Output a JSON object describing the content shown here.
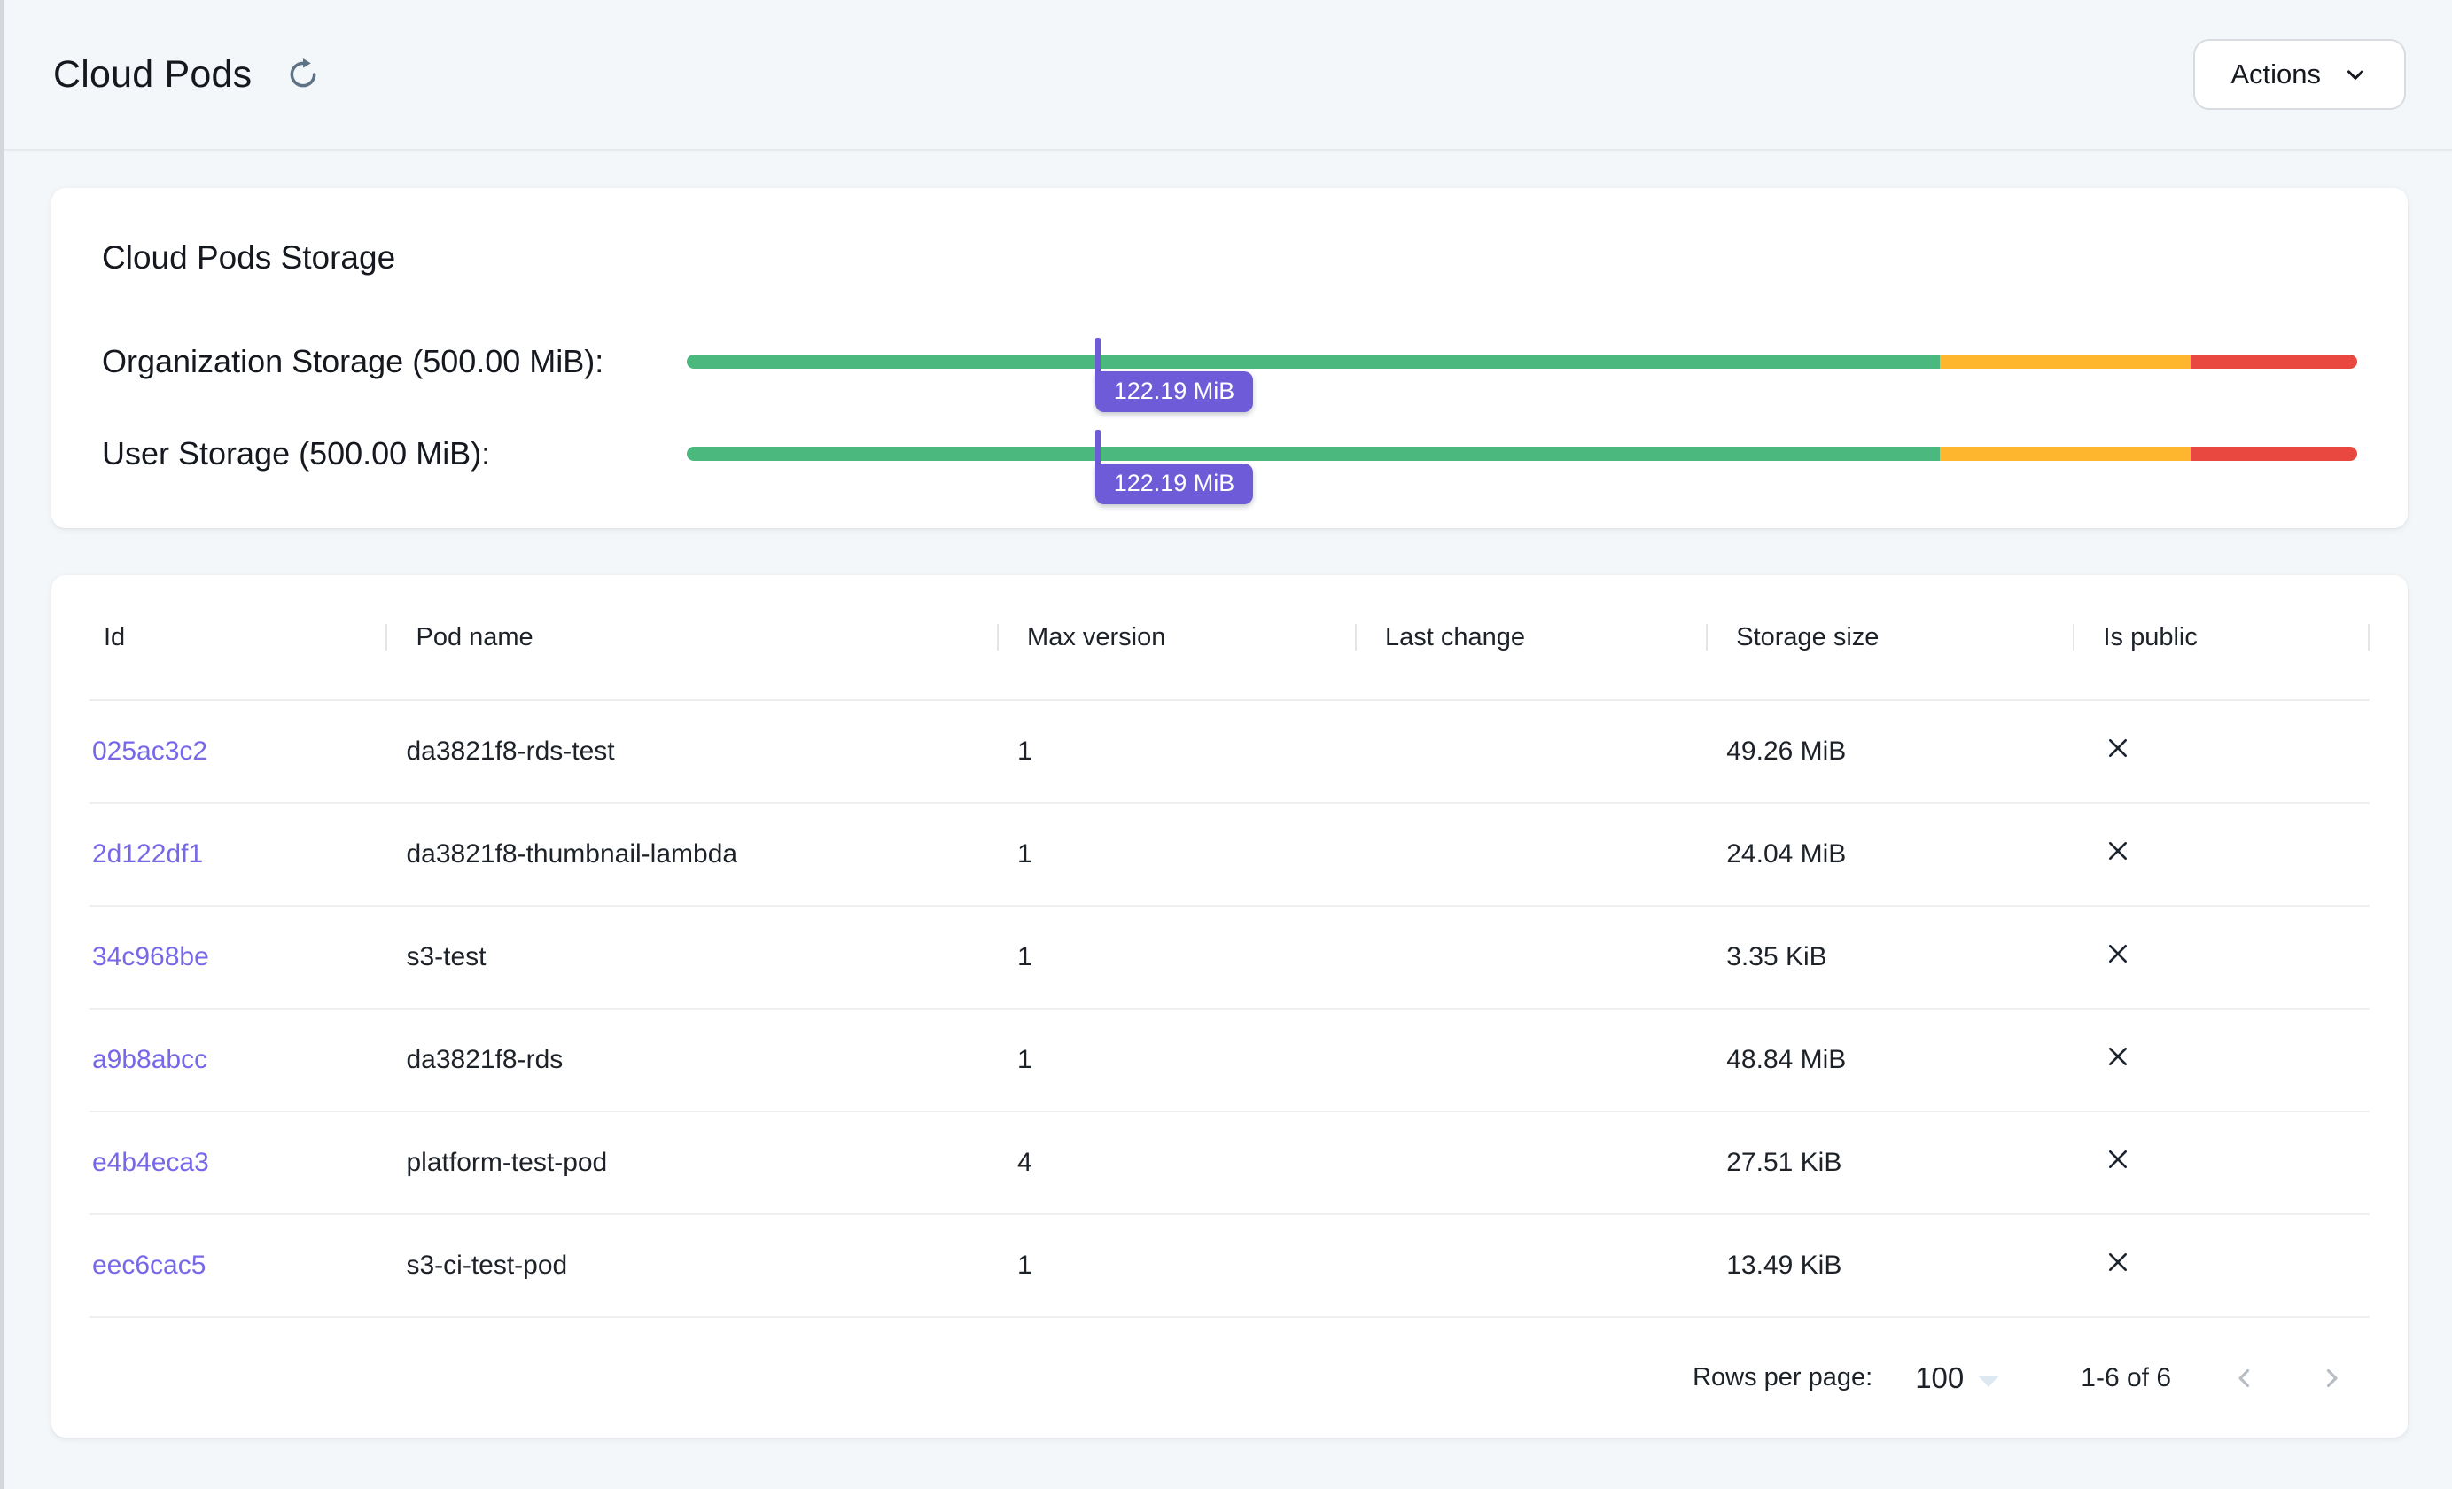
{
  "page": {
    "title": "Cloud Pods"
  },
  "topbar": {
    "actions_label": "Actions",
    "refresh_icon_color": "#5f7184"
  },
  "storage_card": {
    "title": "Cloud Pods Storage",
    "bars": [
      {
        "label": "Organization Storage (500.00 MiB):",
        "value_label": "122.19 MiB",
        "used_mib": 122.19,
        "capacity_mib": 500.0,
        "percent_used": 24.44
      },
      {
        "label": "User Storage (500.00 MiB):",
        "value_label": "122.19 MiB",
        "used_mib": 122.19,
        "capacity_mib": 500.0,
        "percent_used": 24.44
      }
    ],
    "segments": [
      {
        "name": "ok",
        "percent": 75,
        "color": "#4bb87e"
      },
      {
        "name": "warning",
        "percent": 15,
        "color": "#fdb62e"
      },
      {
        "name": "critical",
        "percent": 10,
        "color": "#e8483f"
      }
    ],
    "marker_color": "#6e5bd8",
    "tooltip_color": "#6e5bd8"
  },
  "table": {
    "columns": [
      "Id",
      "Pod name",
      "Max version",
      "Last change",
      "Storage size",
      "Is public"
    ],
    "rows": [
      {
        "id": "025ac3c2",
        "pod_name": "da3821f8-rds-test",
        "max_version": "1",
        "last_change": "",
        "storage_size": "49.26 MiB",
        "is_public": false
      },
      {
        "id": "2d122df1",
        "pod_name": "da3821f8-thumbnail-lambda",
        "max_version": "1",
        "last_change": "",
        "storage_size": "24.04 MiB",
        "is_public": false
      },
      {
        "id": "34c968be",
        "pod_name": "s3-test",
        "max_version": "1",
        "last_change": "",
        "storage_size": "3.35 KiB",
        "is_public": false
      },
      {
        "id": "a9b8abcc",
        "pod_name": "da3821f8-rds",
        "max_version": "1",
        "last_change": "",
        "storage_size": "48.84 MiB",
        "is_public": false
      },
      {
        "id": "e4b4eca3",
        "pod_name": "platform-test-pod",
        "max_version": "4",
        "last_change": "",
        "storage_size": "27.51 KiB",
        "is_public": false
      },
      {
        "id": "eec6cac5",
        "pod_name": "s3-ci-test-pod",
        "max_version": "1",
        "last_change": "",
        "storage_size": "13.49 KiB",
        "is_public": false
      }
    ],
    "id_link_color": "#7668e8",
    "pagination": {
      "rows_per_page_label": "Rows per page:",
      "rows_per_page_value": "100",
      "range_label": "1-6 of 6"
    }
  },
  "colors": {
    "page_background": "#f4f7f9",
    "card_background": "#ffffff",
    "text_primary": "#1d2229",
    "divider": "#ededed"
  }
}
